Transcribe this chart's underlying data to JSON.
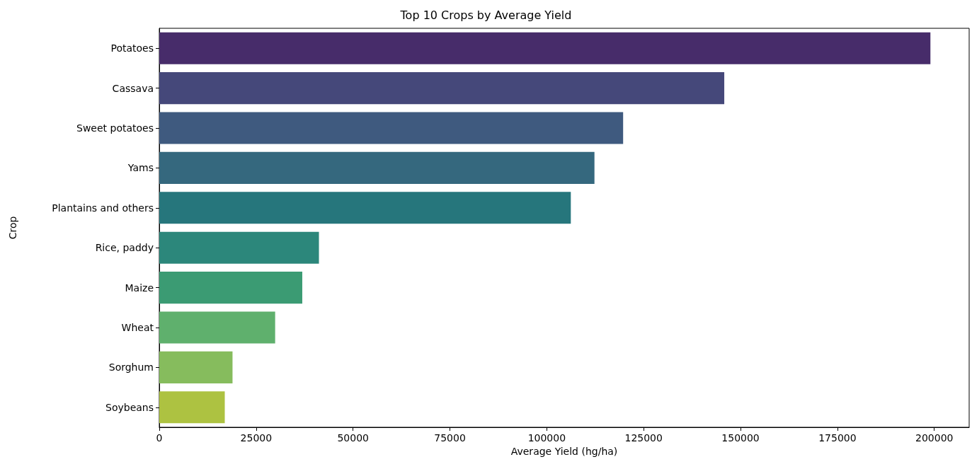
{
  "chart_data": {
    "type": "bar",
    "orientation": "horizontal",
    "title": "Top 10 Crops by Average Yield",
    "xlabel": "Average Yield (hg/ha)",
    "ylabel": "Crop",
    "categories": [
      "Potatoes",
      "Cassava",
      "Sweet potatoes",
      "Yams",
      "Plantains and others",
      "Rice, paddy",
      "Maize",
      "Wheat",
      "Sorghum",
      "Soybeans"
    ],
    "values": [
      199000,
      145800,
      119700,
      112300,
      106200,
      41200,
      36900,
      29900,
      18900,
      16900
    ],
    "colors": [
      "#472c6a",
      "#45487a",
      "#3f5a7f",
      "#35687e",
      "#26767c",
      "#2c877b",
      "#3b9b73",
      "#5fb06d",
      "#86bc5d",
      "#adc241"
    ],
    "xlim": [
      0,
      209000
    ],
    "xticks": [
      0,
      25000,
      50000,
      75000,
      100000,
      125000,
      150000,
      175000,
      200000
    ],
    "grid": false
  }
}
